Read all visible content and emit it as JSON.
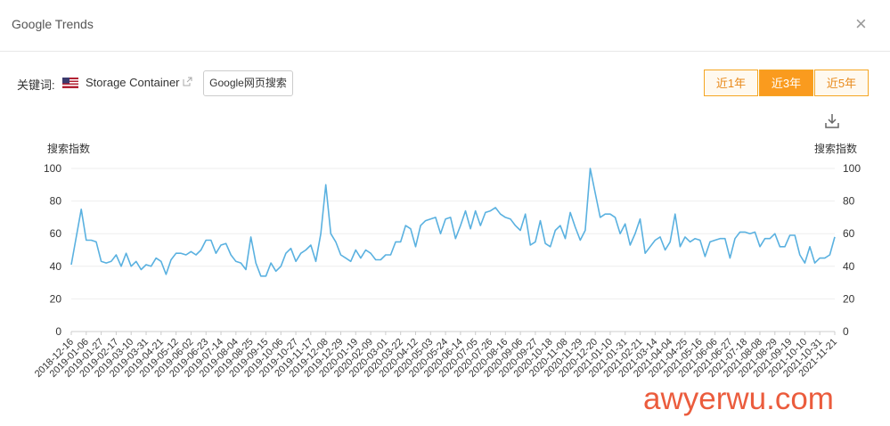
{
  "header": {
    "title": "Google Trends",
    "close": "×"
  },
  "keyword": {
    "label": "关键词:",
    "term": "Storage Container",
    "button": "Google网页搜索"
  },
  "tabs": [
    "近1年",
    "近3年",
    "近5年"
  ],
  "active_tab": 1,
  "watermark": "awyerwu.com",
  "chart_data": {
    "type": "line",
    "y_label": "搜索指数",
    "y2_label": "搜索指数",
    "color": "#5ab1e0",
    "grid": true,
    "ylim": [
      0,
      100
    ],
    "yticks": [
      0,
      20,
      40,
      60,
      80,
      100
    ],
    "y2lim": [
      0,
      100
    ],
    "y2ticks": [
      0,
      20,
      40,
      60,
      80,
      100
    ],
    "categories": [
      "2018-12-16",
      null,
      null,
      "2019-01-06",
      null,
      null,
      "2019-01-27",
      null,
      null,
      "2019-02-17",
      null,
      null,
      "2019-03-10",
      null,
      null,
      "2019-03-31",
      null,
      null,
      "2019-04-21",
      null,
      null,
      "2019-05-12",
      null,
      null,
      "2019-06-02",
      null,
      null,
      "2019-06-23",
      null,
      null,
      "2019-07-14",
      null,
      null,
      "2019-08-04",
      null,
      null,
      "2019-08-25",
      null,
      null,
      "2019-09-15",
      null,
      null,
      "2019-10-06",
      null,
      null,
      "2019-10-27",
      null,
      null,
      "2019-11-17",
      null,
      null,
      "2019-12-08",
      null,
      null,
      "2019-12-29",
      null,
      null,
      "2020-01-19",
      null,
      null,
      "2020-02-09",
      null,
      null,
      "2020-03-01",
      null,
      null,
      "2020-03-22",
      null,
      null,
      "2020-04-12",
      null,
      null,
      "2020-05-03",
      null,
      null,
      "2020-05-24",
      null,
      null,
      "2020-06-14",
      null,
      null,
      "2020-07-05",
      null,
      null,
      "2020-07-26",
      null,
      null,
      "2020-08-16",
      null,
      null,
      "2020-09-06",
      null,
      null,
      "2020-09-27",
      null,
      null,
      "2020-10-18",
      null,
      null,
      "2020-11-08",
      null,
      null,
      "2020-11-29",
      null,
      null,
      "2020-12-20",
      null,
      null,
      "2021-01-10",
      null,
      null,
      "2021-01-31",
      null,
      null,
      "2021-02-21",
      null,
      null,
      "2021-03-14",
      null,
      null,
      "2021-04-04",
      null,
      null,
      "2021-04-25",
      null,
      null,
      "2021-05-16",
      null,
      null,
      "2021-06-06",
      null,
      null,
      "2021-06-27",
      null,
      null,
      "2021-07-18",
      null,
      null,
      "2021-08-08",
      null,
      null,
      "2021-08-29",
      null,
      null,
      "2021-09-19",
      null,
      null,
      "2021-10-10",
      null,
      null,
      "2021-10-31",
      null,
      null,
      "2021-11-21"
    ],
    "values": [
      41,
      58,
      75,
      56,
      56,
      55,
      43,
      42,
      43,
      47,
      40,
      48,
      40,
      43,
      38,
      41,
      40,
      45,
      43,
      35,
      44,
      48,
      48,
      47,
      49,
      47,
      50,
      56,
      56,
      48,
      53,
      54,
      47,
      43,
      42,
      38,
      58,
      42,
      34,
      34,
      42,
      37,
      40,
      48,
      51,
      43,
      48,
      50,
      53,
      43,
      60,
      90,
      60,
      55,
      47,
      45,
      43,
      50,
      45,
      50,
      48,
      44,
      44,
      47,
      47,
      55,
      55,
      65,
      63,
      52,
      65,
      68,
      69,
      70,
      60,
      69,
      70,
      57,
      65,
      74,
      63,
      74,
      65,
      73,
      74,
      76,
      72,
      70,
      69,
      65,
      62,
      72,
      53,
      55,
      68,
      54,
      52,
      62,
      65,
      57,
      73,
      64,
      56,
      62,
      100,
      85,
      70,
      72,
      72,
      70,
      60,
      66,
      53,
      60,
      69,
      48,
      52,
      56,
      58,
      50,
      55,
      72,
      52,
      58,
      55,
      57,
      56,
      46,
      55,
      56,
      57,
      57,
      45,
      57,
      61,
      61,
      60,
      61,
      52,
      57,
      57,
      60,
      52,
      52,
      59,
      59,
      47,
      42,
      52,
      42,
      45,
      45,
      47,
      58
    ]
  }
}
